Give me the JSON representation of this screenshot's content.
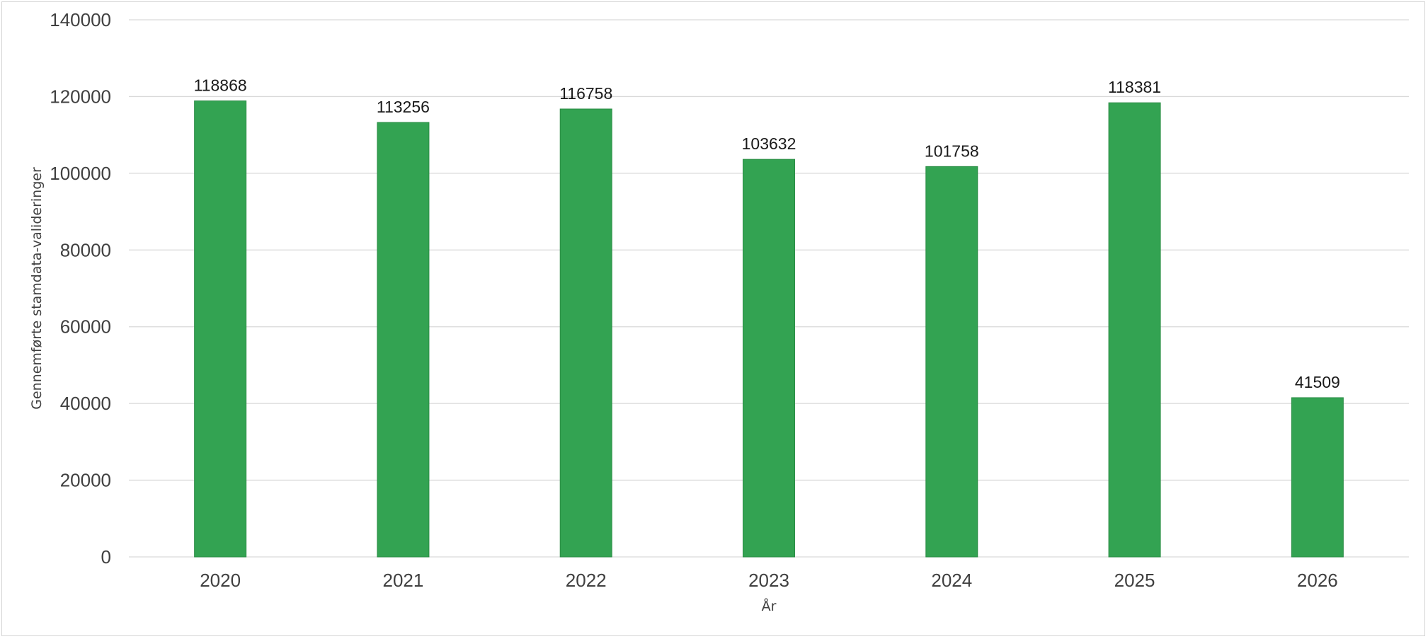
{
  "chart_data": {
    "type": "bar",
    "categories": [
      "2020",
      "2021",
      "2022",
      "2023",
      "2024",
      "2025",
      "2026"
    ],
    "series": [
      {
        "values": [
          118868,
          113256,
          116758,
          103632,
          101758,
          118381,
          41509
        ],
        "color": "#33a352"
      }
    ],
    "data_labels": [
      "118868",
      "113256",
      "116758",
      "103632",
      "101758",
      "118381",
      "41509"
    ],
    "y_ticks": [
      "0",
      "20000",
      "40000",
      "60000",
      "80000",
      "100000",
      "120000",
      "140000"
    ],
    "ylim": [
      0,
      140000
    ],
    "y_step": 20000,
    "xlabel": "År",
    "ylabel": "Gennemførte stamdata-valideringer",
    "title": "",
    "grid": true,
    "legend": "none"
  }
}
